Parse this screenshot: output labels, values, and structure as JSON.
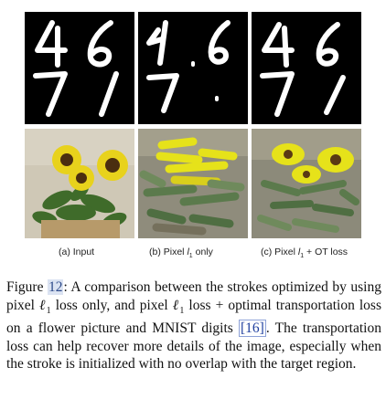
{
  "figure": {
    "sublabels": {
      "a": "(a) Input",
      "b": "(b) Pixel",
      "b_math": "l",
      "b_sub": "1",
      "b_tail": "only",
      "c": "(c) Pixel",
      "c_math": "l",
      "c_sub": "1",
      "c_tail": "+ OT loss"
    },
    "digit_rows": [
      [
        "4",
        "6"
      ],
      [
        "7",
        "1"
      ]
    ],
    "colors": {
      "flower_yellow": "#e8d21c",
      "leaf_green": "#3f6b2a",
      "stroke_green": "#5b7a4c",
      "stroke_yellow": "#e6e21a"
    }
  },
  "caption": {
    "prefix": "Figure",
    "number": "12",
    "part1": ": A comparison between the strokes optimized by using pixel ",
    "l1": "ℓ",
    "sub1": "1",
    "part2": " loss only, and pixel ",
    "l2": "ℓ",
    "sub2": "1",
    "part3": " loss + optimal transportation loss on a flower picture and MNIST digits ",
    "cite": "[16]",
    "part4": ". The transportation loss can help recover more details of the image, especially when the stroke is initialized with no overlap with the target region."
  }
}
